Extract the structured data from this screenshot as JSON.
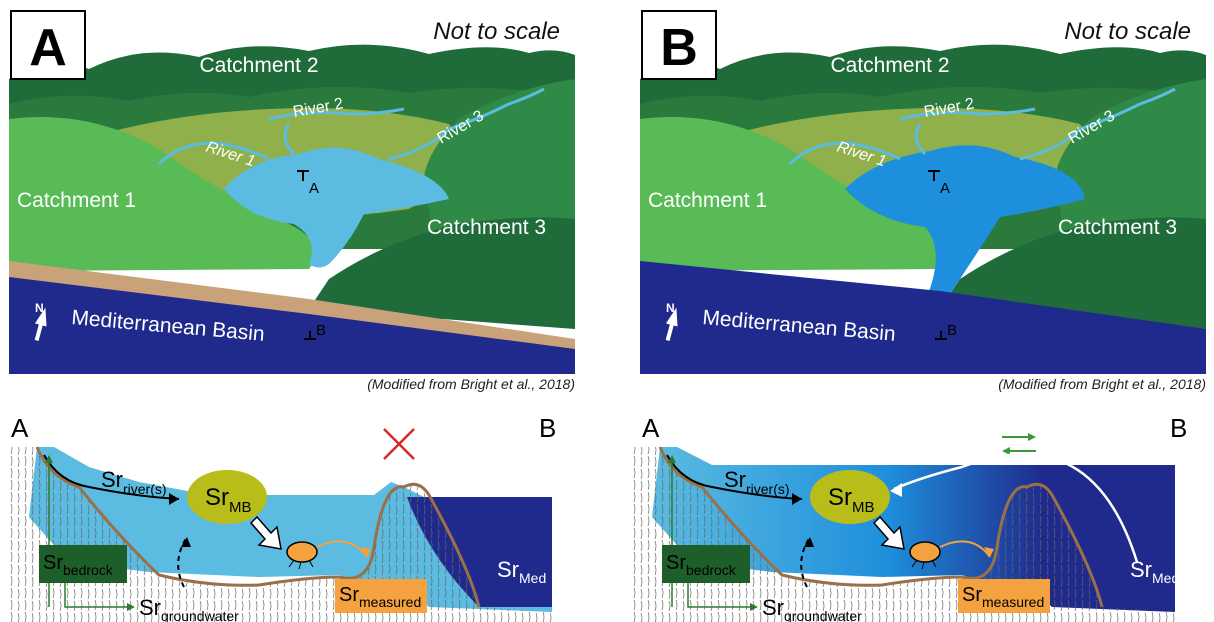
{
  "panels": [
    {
      "letter": "A",
      "not_to_scale": "Not to scale",
      "labels": {
        "catchment1": "Catchment 1",
        "catchment2": "Catchment 2",
        "catchment3": "Catchment 3",
        "river1": "River 1",
        "river2": "River 2",
        "river3": "River 3",
        "basin": "Mediterranean Basin",
        "north": "N",
        "point_a": "A",
        "point_b": "B"
      },
      "credit": "(Modified from Bright et al., 2018)",
      "section": {
        "left": "A",
        "right": "B",
        "connection": "closed",
        "sr": "Sr",
        "sub_rivers": "river(s)",
        "sub_mb": "MB",
        "sub_bedrock": "bedrock",
        "sub_groundwater": "groundwater",
        "sub_measured": "measured",
        "sub_med": "Med"
      }
    },
    {
      "letter": "B",
      "not_to_scale": "Not to scale",
      "labels": {
        "catchment1": "Catchment 1",
        "catchment2": "Catchment 2",
        "catchment3": "Catchment 3",
        "river1": "River 1",
        "river2": "River 2",
        "river3": "River 3",
        "basin": "Mediterranean Basin",
        "north": "N",
        "point_a": "A",
        "point_b": "B"
      },
      "credit": "(Modified from Bright et al., 2018)",
      "section": {
        "left": "A",
        "right": "B",
        "connection": "open",
        "sr": "Sr",
        "sub_rivers": "river(s)",
        "sub_mb": "MB",
        "sub_bedrock": "bedrock",
        "sub_groundwater": "groundwater",
        "sub_measured": "measured",
        "sub_med": "Med"
      }
    }
  ],
  "colors": {
    "lake_a": "#5bbbe0",
    "lake_b": "#1e8fdc",
    "sea": "#1f2a8c",
    "beach": "#c9a27a",
    "dark_green": "#1f6b3a",
    "mid_green": "#2e8a46",
    "light_green": "#58bb55",
    "valley": "#8fb04a",
    "sr_mb": "#b9bd1a",
    "bedrock_box": "#1e5e2a",
    "measured_box": "#f4a23f",
    "cross": "#d42a2a",
    "exchange_arrows": "#3a9a3a"
  }
}
